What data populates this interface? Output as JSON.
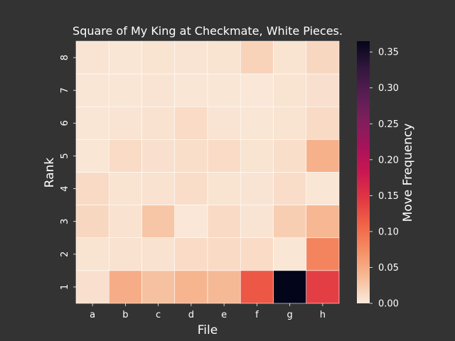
{
  "chart_data": {
    "type": "heatmap",
    "title": "Square of My King at Checkmate, White Pieces.",
    "xlabel": "File",
    "ylabel": "Rank",
    "x_categories": [
      "a",
      "b",
      "c",
      "d",
      "e",
      "f",
      "g",
      "h"
    ],
    "y_categories": [
      "8",
      "7",
      "6",
      "5",
      "4",
      "3",
      "2",
      "1"
    ],
    "values": [
      [
        0.005,
        0.004,
        0.006,
        0.005,
        0.006,
        0.018,
        0.006,
        0.015
      ],
      [
        0.004,
        0.004,
        0.005,
        0.004,
        0.004,
        0.003,
        0.006,
        0.008
      ],
      [
        0.004,
        0.005,
        0.007,
        0.012,
        0.005,
        0.004,
        0.006,
        0.013
      ],
      [
        0.004,
        0.012,
        0.008,
        0.01,
        0.012,
        0.006,
        0.01,
        0.045
      ],
      [
        0.013,
        0.006,
        0.007,
        0.011,
        0.006,
        0.005,
        0.011,
        0.004
      ],
      [
        0.015,
        0.007,
        0.028,
        0.003,
        0.013,
        0.005,
        0.022,
        0.04
      ],
      [
        0.006,
        0.007,
        0.007,
        0.012,
        0.013,
        0.012,
        0.004,
        0.082
      ],
      [
        0.008,
        0.048,
        0.032,
        0.042,
        0.038,
        0.12,
        0.365,
        0.14
      ]
    ],
    "colorbar": {
      "label": "Move Frequency",
      "range": [
        0.0,
        0.365
      ],
      "ticks": [
        "0.00",
        "0.05",
        "0.10",
        "0.15",
        "0.20",
        "0.25",
        "0.30",
        "0.35"
      ],
      "tick_values": [
        0.0,
        0.05,
        0.1,
        0.15,
        0.2,
        0.25,
        0.3,
        0.35
      ],
      "colormap": "rocket_r"
    },
    "grid": true,
    "background": "#333333"
  }
}
